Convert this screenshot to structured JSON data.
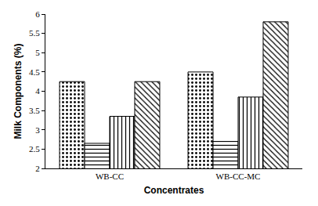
{
  "chart_data": {
    "type": "bar",
    "x_label": "Concentrates",
    "y_label": "Milk Components (%)",
    "categories": [
      "WB-CC",
      "WB-CC-MC"
    ],
    "series": [
      {
        "color": "#ffffff",
        "marker": "dots",
        "values": [
          4.25,
          4.5
        ]
      },
      {
        "color": "#ffffff",
        "marker": "horizontal",
        "values": [
          2.65,
          2.7
        ]
      },
      {
        "color": "#ffffff",
        "marker": "vertical",
        "values": [
          3.35,
          3.85
        ]
      },
      {
        "color": "#ffffff",
        "marker": "waves",
        "values": [
          4.25,
          5.8
        ]
      }
    ],
    "ylim": [
      2,
      6
    ],
    "yticks": [
      2,
      2.5,
      3,
      3.5,
      4,
      4.5,
      5,
      5.5,
      6
    ],
    "grid": false
  }
}
